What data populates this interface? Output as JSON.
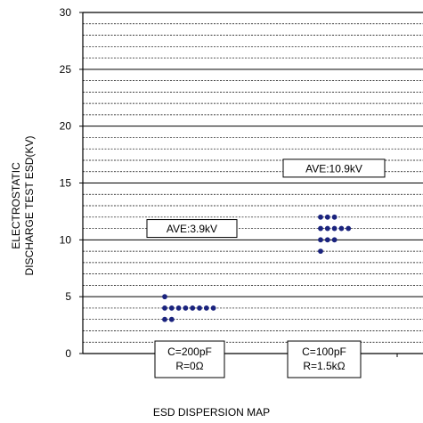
{
  "chart_data": {
    "type": "scatter",
    "title": "",
    "xlabel": "ESD DISPERSION MAP",
    "ylabel_lines": [
      "ELECTROSTATIC",
      "DISCHARGE TEST ESD(KV)"
    ],
    "ylim": [
      0,
      30
    ],
    "yticks": [
      0,
      5,
      10,
      15,
      20,
      25,
      30
    ],
    "minor_grid_step": 1,
    "grid": true,
    "marker_color": "#1a237e",
    "groups": [
      {
        "condition_lines": [
          "C=200pF",
          "R=0Ω"
        ],
        "average_label": "AVE:3.9kV",
        "points": [
          {
            "value": 5,
            "count": 1
          },
          {
            "value": 4,
            "count": 8
          },
          {
            "value": 3,
            "count": 2
          }
        ]
      },
      {
        "condition_lines": [
          "C=100pF",
          "R=1.5kΩ"
        ],
        "average_label": "AVE:10.9kV",
        "points": [
          {
            "value": 12,
            "count": 3
          },
          {
            "value": 11,
            "count": 5
          },
          {
            "value": 10,
            "count": 3
          },
          {
            "value": 9,
            "count": 1
          }
        ]
      }
    ]
  }
}
